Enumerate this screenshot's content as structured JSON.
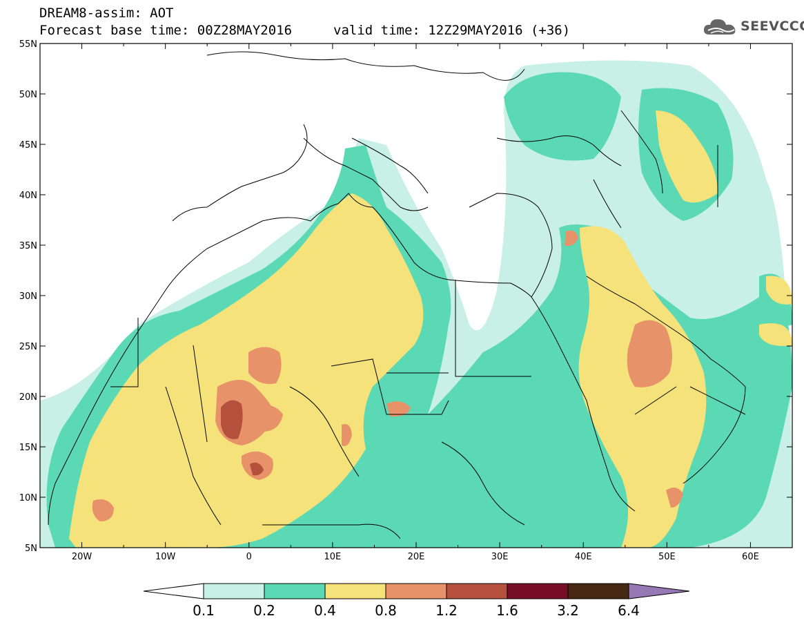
{
  "header": {
    "title_line1": "DREAM8-assim: AOT",
    "title_line2": "Forecast base time: 00Z28MAY2016",
    "valid_time": "valid time: 12Z29MAY2016 (+36)",
    "logo_text": "SEEVCCC"
  },
  "map": {
    "lon_range": [
      -25,
      65
    ],
    "lat_range": [
      5,
      55
    ],
    "lat_ticks": [
      "55N",
      "50N",
      "45N",
      "40N",
      "35N",
      "30N",
      "25N",
      "20N",
      "15N",
      "10N",
      "5N"
    ],
    "lon_ticks": [
      "20W",
      "10W",
      "0",
      "10E",
      "20E",
      "30E",
      "40E",
      "50E",
      "60E"
    ]
  },
  "colorbar": {
    "levels": [
      "0.1",
      "0.2",
      "0.4",
      "0.8",
      "1.2",
      "1.6",
      "3.2",
      "6.4"
    ],
    "colors": [
      "#c8f0e6",
      "#5ad9b4",
      "#f5e27a",
      "#e8926a",
      "#b4503c",
      "#780f28",
      "#462814",
      "#9678b4"
    ]
  },
  "colors": {
    "level1": "#c8f0e6",
    "level2": "#5ad9b4",
    "level3": "#f5e27a",
    "level4": "#e8926a",
    "level5": "#b4503c"
  }
}
